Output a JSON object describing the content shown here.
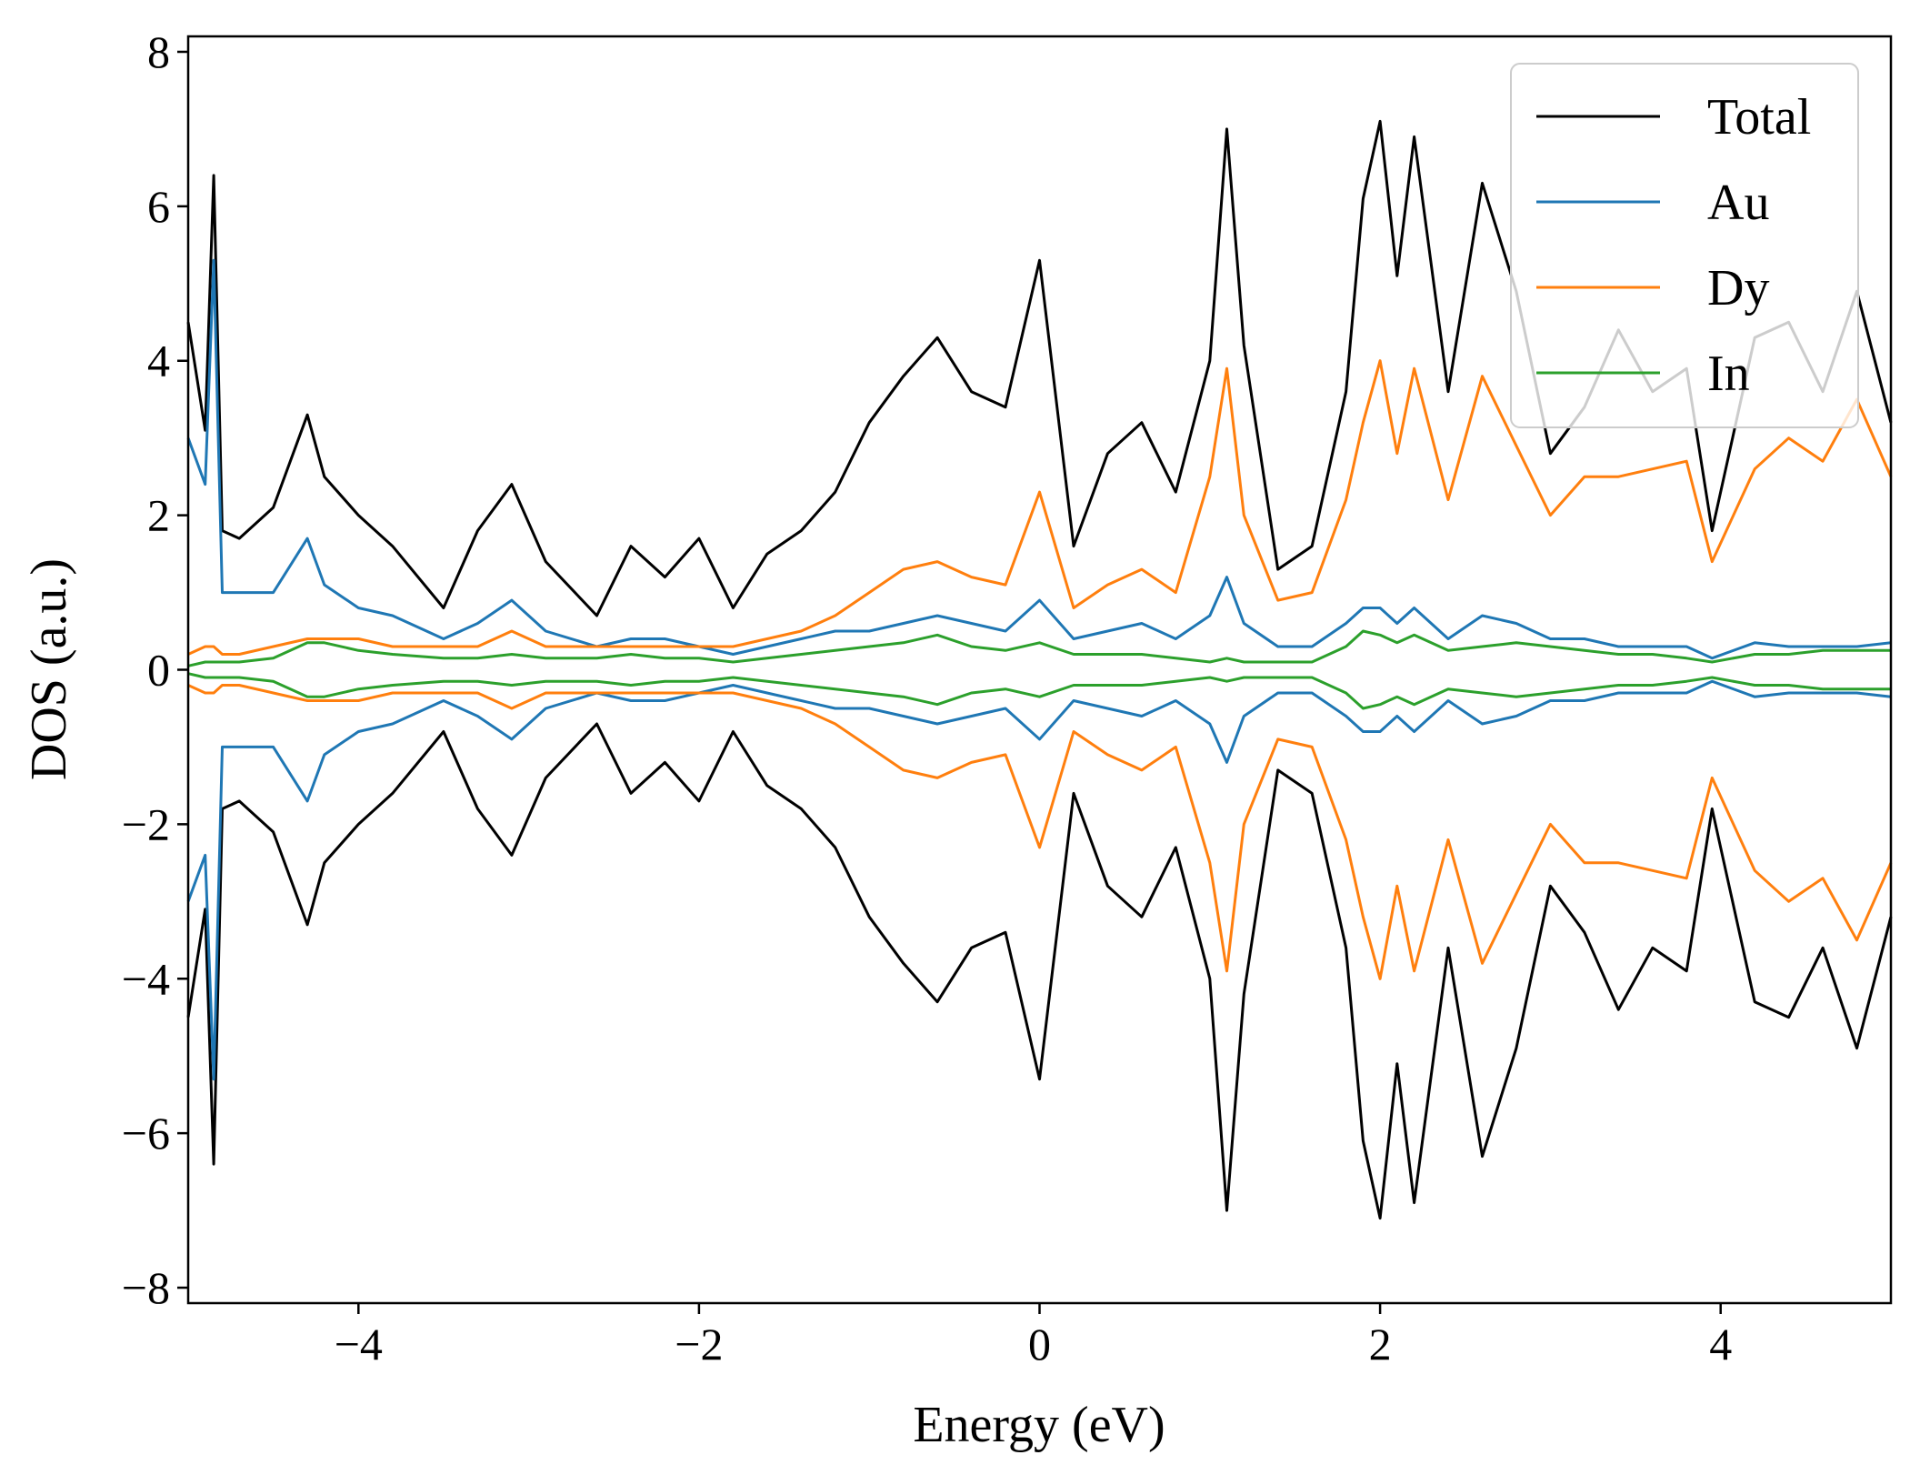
{
  "chart_data": {
    "type": "line",
    "title": "",
    "xlabel": "Energy (eV)",
    "ylabel": "DOS (a.u.)",
    "xlim": [
      -5,
      5
    ],
    "ylim": [
      -8.2,
      8.2
    ],
    "xticks": [
      -4,
      -2,
      0,
      2,
      4
    ],
    "xtick_labels": [
      "−4",
      "−2",
      "0",
      "2",
      "4"
    ],
    "yticks": [
      -8,
      -6,
      -4,
      -2,
      0,
      2,
      4,
      6,
      8
    ],
    "ytick_labels": [
      "−8",
      "−6",
      "−4",
      "−2",
      "0",
      "2",
      "4",
      "6",
      "8"
    ],
    "grid": false,
    "legend_position": "top-right",
    "mirrored_spin_down": true,
    "x": [
      -5.0,
      -4.9,
      -4.85,
      -4.8,
      -4.7,
      -4.5,
      -4.3,
      -4.2,
      -4.0,
      -3.8,
      -3.5,
      -3.3,
      -3.1,
      -2.9,
      -2.6,
      -2.4,
      -2.2,
      -2.0,
      -1.8,
      -1.6,
      -1.4,
      -1.2,
      -1.0,
      -0.8,
      -0.6,
      -0.4,
      -0.2,
      0.0,
      0.2,
      0.4,
      0.6,
      0.8,
      1.0,
      1.1,
      1.2,
      1.4,
      1.6,
      1.8,
      1.9,
      2.0,
      2.1,
      2.2,
      2.4,
      2.6,
      2.8,
      3.0,
      3.2,
      3.4,
      3.6,
      3.8,
      3.95,
      4.2,
      4.4,
      4.6,
      4.8,
      5.0
    ],
    "series": [
      {
        "name": "Total",
        "color": "#000000",
        "values": [
          4.5,
          3.1,
          6.4,
          1.8,
          1.7,
          2.1,
          3.3,
          2.5,
          2.0,
          1.6,
          0.8,
          1.8,
          2.4,
          1.4,
          0.7,
          1.6,
          1.2,
          1.7,
          0.8,
          1.5,
          1.8,
          2.3,
          3.2,
          3.8,
          4.3,
          3.6,
          3.4,
          5.3,
          1.6,
          2.8,
          3.2,
          2.3,
          4.0,
          7.0,
          4.2,
          1.3,
          1.6,
          3.6,
          6.1,
          7.1,
          5.1,
          6.9,
          3.6,
          6.3,
          4.9,
          2.8,
          3.4,
          4.4,
          3.6,
          3.9,
          1.8,
          4.3,
          4.5,
          3.6,
          4.9,
          3.2
        ]
      },
      {
        "name": "Au",
        "color": "#1f77b4",
        "values": [
          3.0,
          2.4,
          5.3,
          1.0,
          1.0,
          1.0,
          1.7,
          1.1,
          0.8,
          0.7,
          0.4,
          0.6,
          0.9,
          0.5,
          0.3,
          0.4,
          0.4,
          0.3,
          0.2,
          0.3,
          0.4,
          0.5,
          0.5,
          0.6,
          0.7,
          0.6,
          0.5,
          0.9,
          0.4,
          0.5,
          0.6,
          0.4,
          0.7,
          1.2,
          0.6,
          0.3,
          0.3,
          0.6,
          0.8,
          0.8,
          0.6,
          0.8,
          0.4,
          0.7,
          0.6,
          0.4,
          0.4,
          0.3,
          0.3,
          0.3,
          0.15,
          0.35,
          0.3,
          0.3,
          0.3,
          0.35
        ]
      },
      {
        "name": "Dy",
        "color": "#ff7f0e",
        "values": [
          0.2,
          0.3,
          0.3,
          0.2,
          0.2,
          0.3,
          0.4,
          0.4,
          0.4,
          0.3,
          0.3,
          0.3,
          0.5,
          0.3,
          0.3,
          0.3,
          0.3,
          0.3,
          0.3,
          0.4,
          0.5,
          0.7,
          1.0,
          1.3,
          1.4,
          1.2,
          1.1,
          2.3,
          0.8,
          1.1,
          1.3,
          1.0,
          2.5,
          3.9,
          2.0,
          0.9,
          1.0,
          2.2,
          3.2,
          4.0,
          2.8,
          3.9,
          2.2,
          3.8,
          2.9,
          2.0,
          2.5,
          2.5,
          2.6,
          2.7,
          1.4,
          2.6,
          3.0,
          2.7,
          3.5,
          2.5
        ]
      },
      {
        "name": "In",
        "color": "#2ca02c",
        "values": [
          0.05,
          0.1,
          0.1,
          0.1,
          0.1,
          0.15,
          0.35,
          0.35,
          0.25,
          0.2,
          0.15,
          0.15,
          0.2,
          0.15,
          0.15,
          0.2,
          0.15,
          0.15,
          0.1,
          0.15,
          0.2,
          0.25,
          0.3,
          0.35,
          0.45,
          0.3,
          0.25,
          0.35,
          0.2,
          0.2,
          0.2,
          0.15,
          0.1,
          0.15,
          0.1,
          0.1,
          0.1,
          0.3,
          0.5,
          0.45,
          0.35,
          0.45,
          0.25,
          0.3,
          0.35,
          0.3,
          0.25,
          0.2,
          0.2,
          0.15,
          0.1,
          0.2,
          0.2,
          0.25,
          0.25,
          0.25
        ]
      }
    ]
  }
}
